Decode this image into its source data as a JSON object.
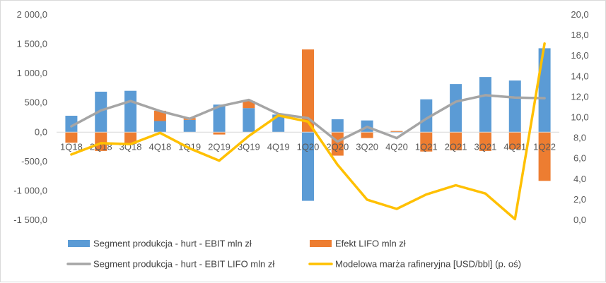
{
  "chart_data": {
    "type": "bar",
    "categories": [
      "1Q18",
      "2Q18",
      "3Q18",
      "4Q18",
      "1Q19",
      "2Q19",
      "3Q19",
      "4Q19",
      "1Q20",
      "2Q20",
      "3Q20",
      "4Q20",
      "1Q21",
      "2Q21",
      "3Q21",
      "4Q21",
      "1Q22"
    ],
    "series": [
      {
        "name": "Segment produkcja - hurt - EBIT mln zł",
        "type": "bar",
        "axis": "left",
        "color": "#5b9bd5",
        "values": [
          280,
          690,
          705,
          190,
          210,
          470,
          410,
          300,
          -1170,
          220,
          200,
          -10,
          560,
          820,
          940,
          880,
          1430
        ]
      },
      {
        "name": "Efekt LIFO mln zł",
        "type": "bar",
        "axis": "left",
        "color": "#ed7d31",
        "values": [
          -180,
          -320,
          -200,
          175,
          30,
          -40,
          120,
          0,
          1410,
          -400,
          -100,
          20,
          -330,
          -310,
          -320,
          -290,
          -830
        ]
      },
      {
        "name": "Segment produkcja - hurt - EBIT LIFO mln zł",
        "type": "line",
        "axis": "left",
        "color": "#a5a5a5",
        "values": [
          100,
          370,
          530,
          360,
          230,
          440,
          550,
          310,
          240,
          -160,
          90,
          -100,
          230,
          520,
          630,
          590,
          580
        ]
      },
      {
        "name": "Modelowa marża rafineryjna [USD/bbl] (p. oś)",
        "type": "line",
        "axis": "right",
        "color": "#ffc000",
        "values": [
          6.4,
          7.5,
          7.4,
          8.5,
          7.0,
          5.8,
          8.2,
          10.2,
          9.6,
          5.4,
          2.0,
          1.1,
          2.5,
          3.4,
          2.6,
          0.1,
          17.2
        ]
      }
    ],
    "y_left": {
      "lim": [
        -1500,
        2000
      ],
      "ticks": [
        2000,
        1500,
        1000,
        500,
        0,
        -500,
        -1000,
        -1500
      ],
      "tick_labels": [
        "2 000,0",
        "1 500,0",
        "1 000,0",
        "500,0",
        "0,0",
        "-500,0",
        "-1 000,0",
        "-1 500,0"
      ]
    },
    "y_right": {
      "lim": [
        0,
        20
      ],
      "ticks": [
        20,
        18,
        16,
        14,
        12,
        10,
        8,
        6,
        4,
        2,
        0
      ],
      "tick_labels": [
        "20,0",
        "18,0",
        "16,0",
        "14,0",
        "12,0",
        "10,0",
        "8,0",
        "6,0",
        "4,0",
        "2,0",
        "0,0"
      ]
    },
    "grid": false,
    "legend_position": "bottom",
    "title": "",
    "xlabel": "",
    "ylabel": ""
  }
}
